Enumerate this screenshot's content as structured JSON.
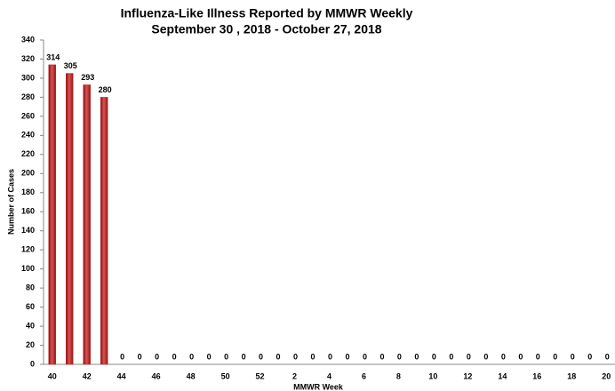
{
  "chart_data": {
    "type": "bar",
    "title": "Influenza-Like Illness Reported by MMWR Weekly",
    "subtitle": "September 30 , 2018 - October 27, 2018",
    "x_label": "MMWR Week",
    "y_label": "Number of Cases",
    "categories": [
      "40",
      null,
      "42",
      null,
      "44",
      null,
      "46",
      null,
      "48",
      null,
      "50",
      null,
      "52",
      null,
      "2",
      null,
      "4",
      null,
      "6",
      null,
      "8",
      null,
      "10",
      null,
      "12",
      null,
      "14",
      null,
      "16",
      null,
      "18",
      null,
      "20"
    ],
    "values": [
      314,
      305,
      293,
      280,
      0,
      0,
      0,
      0,
      0,
      0,
      0,
      0,
      0,
      0,
      0,
      0,
      0,
      0,
      0,
      0,
      0,
      0,
      0,
      0,
      0,
      0,
      0,
      0,
      0,
      0,
      0,
      0,
      0
    ],
    "color": "#c0282a",
    "ylim": [
      0,
      340
    ],
    "yticks": [
      0,
      20,
      40,
      60,
      80,
      100,
      120,
      140,
      160,
      180,
      200,
      220,
      240,
      260,
      280,
      300,
      320,
      340
    ],
    "grid": false
  }
}
